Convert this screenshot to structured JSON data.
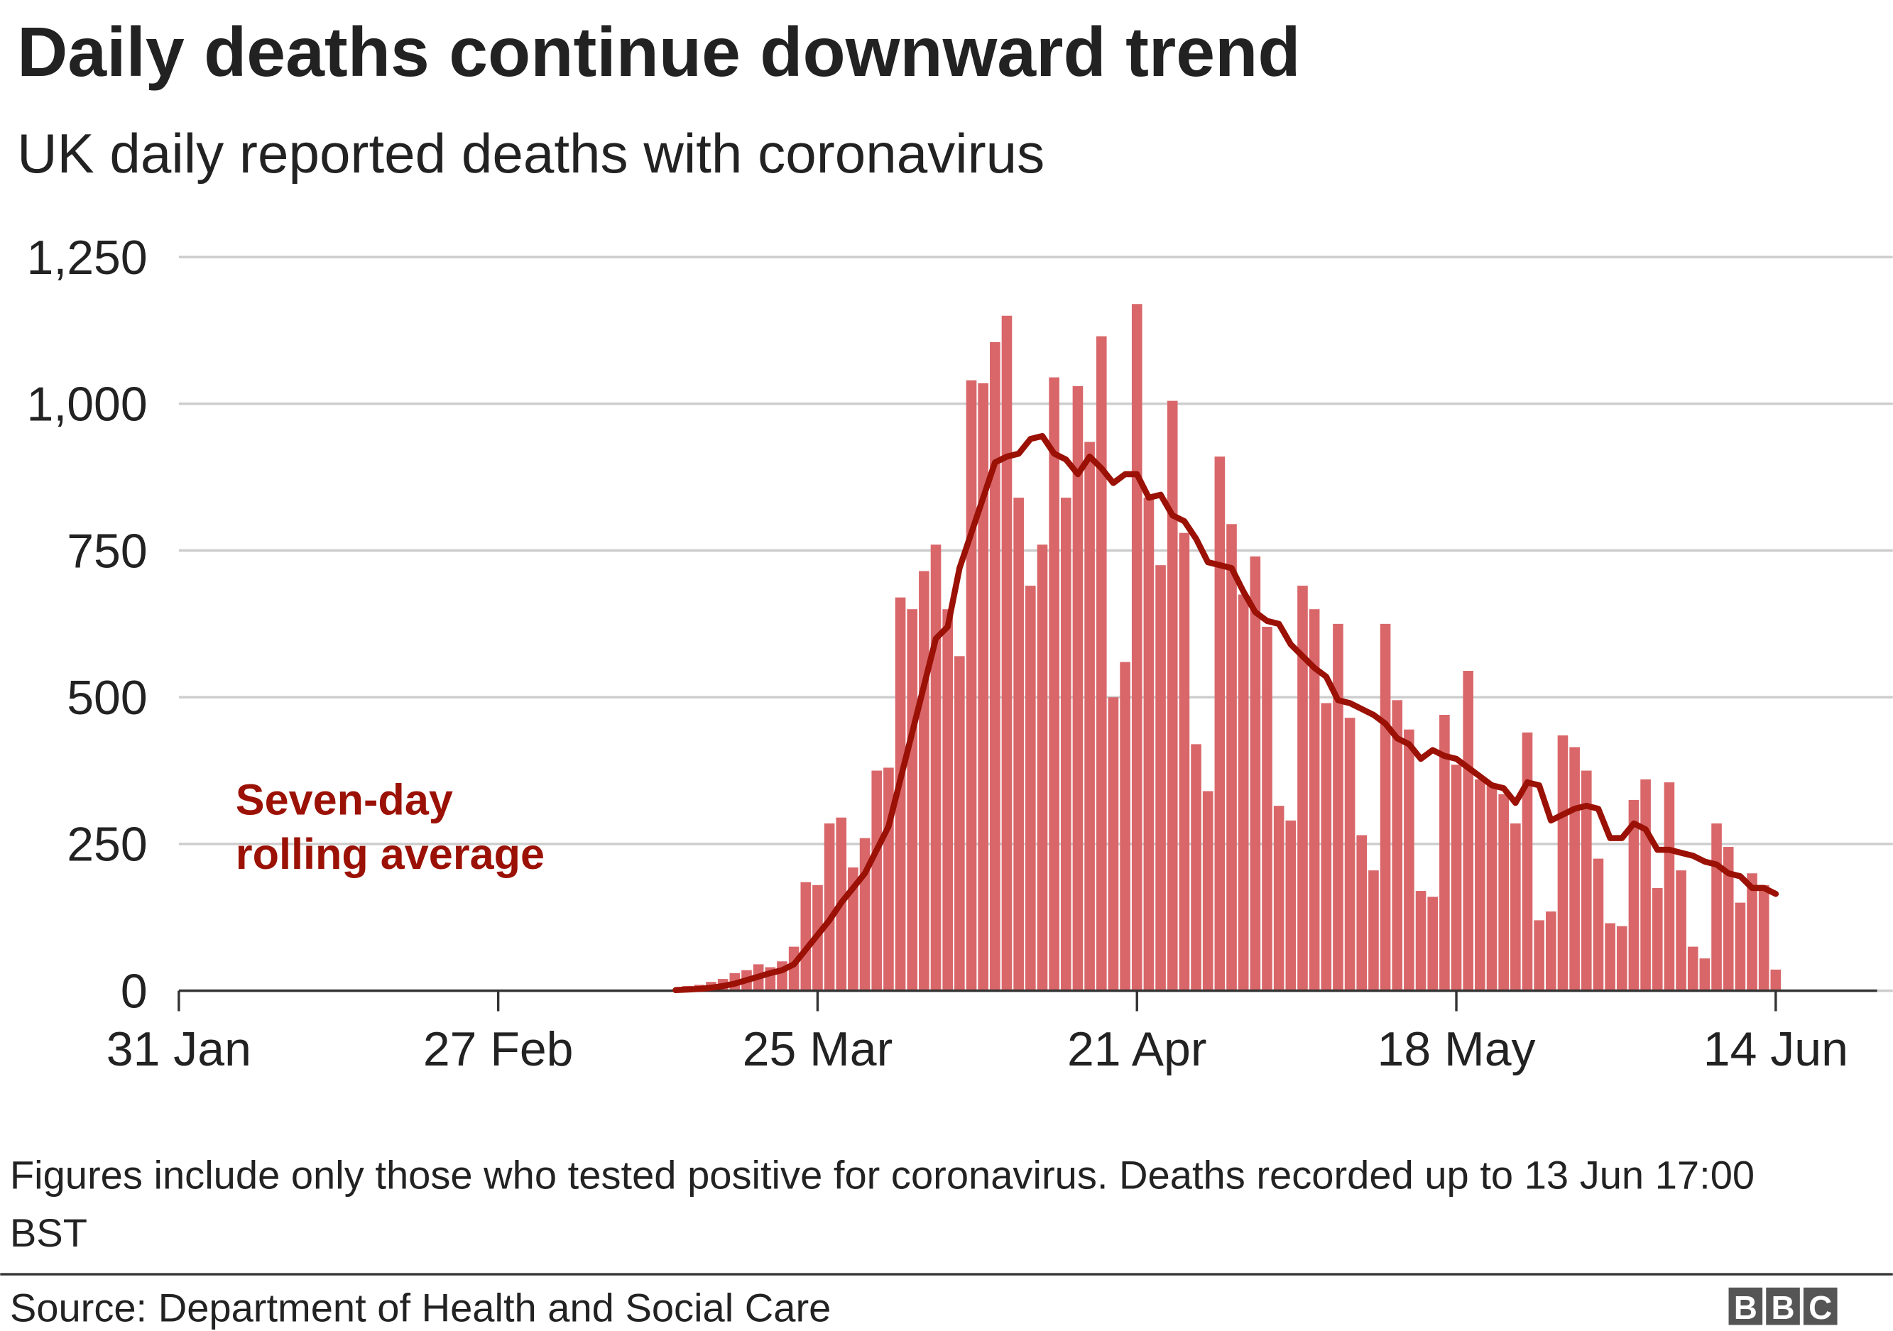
{
  "chart_data": {
    "type": "bar",
    "title": "Daily deaths continue downward trend",
    "subtitle": "UK daily reported deaths with coronavirus",
    "categories": [
      "31 Jan",
      null,
      null,
      null,
      null,
      null,
      null,
      null,
      null,
      null,
      null,
      null,
      null,
      null,
      null,
      null,
      null,
      null,
      null,
      null,
      null,
      null,
      null,
      null,
      null,
      null,
      null,
      "27 Feb",
      null,
      null,
      null,
      null,
      null,
      null,
      null,
      null,
      null,
      null,
      null,
      null,
      null,
      null,
      null,
      null,
      null,
      null,
      null,
      null,
      null,
      null,
      null,
      null,
      null,
      null,
      "25 Mar",
      null,
      null,
      null,
      null,
      null,
      null,
      null,
      null,
      null,
      null,
      null,
      null,
      null,
      null,
      null,
      null,
      null,
      null,
      null,
      null,
      null,
      null,
      null,
      null,
      null,
      null,
      "21 Apr",
      null,
      null,
      null,
      null,
      null,
      null,
      null,
      null,
      null,
      null,
      null,
      null,
      null,
      null,
      null,
      null,
      null,
      null,
      null,
      null,
      null,
      null,
      null,
      null,
      null,
      null,
      "18 May",
      null,
      null,
      null,
      null,
      null,
      null,
      null,
      null,
      null,
      null,
      null,
      null,
      null,
      null,
      null,
      null,
      null,
      null,
      null,
      null,
      null,
      null,
      null,
      null,
      null,
      null,
      "14 Jun"
    ],
    "series": [
      {
        "color": "#d9676a",
        "values": [
          null,
          null,
          null,
          null,
          null,
          null,
          null,
          null,
          null,
          null,
          null,
          null,
          null,
          null,
          null,
          null,
          null,
          null,
          null,
          null,
          null,
          null,
          null,
          null,
          null,
          null,
          null,
          null,
          null,
          null,
          null,
          null,
          null,
          null,
          null,
          null,
          null,
          null,
          null,
          null,
          null,
          null,
          2,
          8,
          10,
          15,
          20,
          30,
          35,
          45,
          40,
          50,
          75,
          185,
          180,
          285,
          295,
          210,
          260,
          375,
          380,
          670,
          650,
          715,
          760,
          650,
          570,
          1040,
          1035,
          1105,
          1150,
          840,
          690,
          760,
          1045,
          840,
          1030,
          935,
          1115,
          500,
          560,
          1170,
          840,
          725,
          1005,
          780,
          420,
          340,
          910,
          795,
          675,
          740,
          620,
          315,
          290,
          690,
          650,
          490,
          625,
          465,
          265,
          205,
          625,
          495,
          445,
          170,
          160,
          470,
          385,
          545,
          360,
          350,
          335,
          285,
          440,
          120,
          135,
          435,
          415,
          375,
          225,
          115,
          110,
          325,
          360,
          175,
          355,
          205,
          75,
          55,
          285,
          245,
          150,
          200,
          180,
          36
        ]
      },
      {
        "name": "Seven-day rolling average",
        "type": "line",
        "color": "#9b1106",
        "values": [
          null,
          null,
          null,
          null,
          null,
          null,
          null,
          null,
          null,
          null,
          null,
          null,
          null,
          null,
          null,
          null,
          null,
          null,
          null,
          null,
          null,
          null,
          null,
          null,
          null,
          null,
          null,
          null,
          null,
          null,
          null,
          null,
          null,
          null,
          null,
          null,
          null,
          null,
          null,
          null,
          null,
          null,
          1,
          2,
          3,
          5,
          8,
          12,
          18,
          24,
          30,
          35,
          45,
          70,
          95,
          120,
          150,
          175,
          200,
          240,
          280,
          360,
          440,
          520,
          600,
          620,
          720,
          780,
          840,
          900,
          910,
          915,
          940,
          945,
          915,
          905,
          880,
          910,
          890,
          865,
          880,
          880,
          840,
          845,
          810,
          800,
          770,
          730,
          725,
          720,
          680,
          645,
          630,
          625,
          590,
          570,
          550,
          535,
          495,
          490,
          480,
          470,
          455,
          430,
          420,
          395,
          410,
          400,
          395,
          380,
          365,
          350,
          345,
          320,
          355,
          350,
          290,
          300,
          310,
          315,
          310,
          260,
          260,
          285,
          275,
          240,
          240,
          235,
          230,
          220,
          215,
          200,
          195,
          175,
          175,
          165
        ]
      }
    ],
    "ylim": [
      0,
      1250
    ],
    "yticks": [
      0,
      250,
      500,
      750,
      {
        "value": 1000,
        "label": "1,000"
      },
      {
        "value": 1250,
        "label": "1,250"
      }
    ],
    "grid": true,
    "footnote": "Figures include only those who tested positive for coronavirus. Deaths recorded up to 13 Jun 17:00 BST",
    "source": "Source: Department of Health and Social Care",
    "logo": "BBC"
  }
}
